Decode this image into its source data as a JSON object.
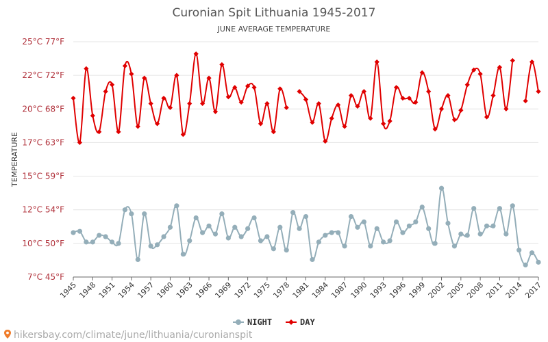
{
  "chart_data": {
    "type": "line",
    "title": "Curonian Spit Lithuania 1945-2017",
    "subtitle": "JUNE AVERAGE TEMPERATURE",
    "ylabel": "TEMPERATURE",
    "y_ticks": [
      "25°C 77°F",
      "22°C 72°F",
      "20°C 68°F",
      "17°C 63°F",
      "15°C 59°F",
      "12°C 54°F",
      "10°C 50°F",
      "7°C 45°F"
    ],
    "ylim": [
      7.5,
      25
    ],
    "x_ticks": [
      "1945",
      "1948",
      "1951",
      "1954",
      "1957",
      "1960",
      "1963",
      "1966",
      "1969",
      "1972",
      "1975",
      "1978",
      "1981",
      "1984",
      "1987",
      "1990",
      "1993",
      "1996",
      "1999",
      "2002",
      "2005",
      "2008",
      "2011",
      "2014",
      "2017"
    ],
    "x_start": 1945,
    "x_end": 2017,
    "series": [
      {
        "name": "DAY",
        "color": "#e00000",
        "values": [
          20.8,
          17.5,
          23,
          19.5,
          18.3,
          21.3,
          21.8,
          18.3,
          23.2,
          22.6,
          18.7,
          22.3,
          20.4,
          18.9,
          20.8,
          20.1,
          22.5,
          18.1,
          20.4,
          24.1,
          20.4,
          22.3,
          19.8,
          23.3,
          20.9,
          21.6,
          20.5,
          21.7,
          21.6,
          18.9,
          20.4,
          18.3,
          21.5,
          20.1,
          null,
          21.3,
          20.7,
          19,
          20.4,
          17.6,
          19.3,
          20.3,
          18.7,
          21,
          20.2,
          21.3,
          19.3,
          23.5,
          18.9,
          19.1,
          21.6,
          20.8,
          20.8,
          20.5,
          22.7,
          21.3,
          18.5,
          20,
          21,
          19.2,
          19.9,
          21.8,
          22.9,
          22.6,
          19.4,
          21,
          23.1,
          20,
          23.6,
          null,
          20.6,
          23.5,
          21.3
        ]
      },
      {
        "name": "NIGHT",
        "color": "#94aeb9",
        "values": [
          10.8,
          10.9,
          10.1,
          10.1,
          10.6,
          10.5,
          10.1,
          10,
          12.5,
          12.2,
          8.8,
          12.2,
          9.8,
          9.9,
          10.5,
          11.2,
          12.8,
          9.2,
          10.2,
          11.9,
          10.8,
          11.3,
          10.7,
          12.2,
          10.4,
          11.2,
          10.5,
          11.1,
          11.9,
          10.2,
          10.5,
          9.6,
          11.2,
          9.5,
          12.3,
          11.1,
          12,
          8.8,
          10.1,
          10.6,
          10.8,
          10.8,
          9.8,
          12,
          11.2,
          11.6,
          9.8,
          11.1,
          10.1,
          10.2,
          11.6,
          10.8,
          11.3,
          11.6,
          12.7,
          11.1,
          10,
          14.1,
          11.5,
          9.8,
          10.7,
          10.6,
          12.6,
          10.7,
          11.3,
          11.3,
          12.6,
          10.7,
          12.8,
          9.5,
          8.4,
          9.3,
          8.6
        ]
      }
    ],
    "legend": [
      "NIGHT",
      "DAY"
    ],
    "legend_position": "bottom-center",
    "grid": true
  },
  "source": {
    "text": "hikersbay.com/climate/june/lithuania/curonianspit"
  }
}
